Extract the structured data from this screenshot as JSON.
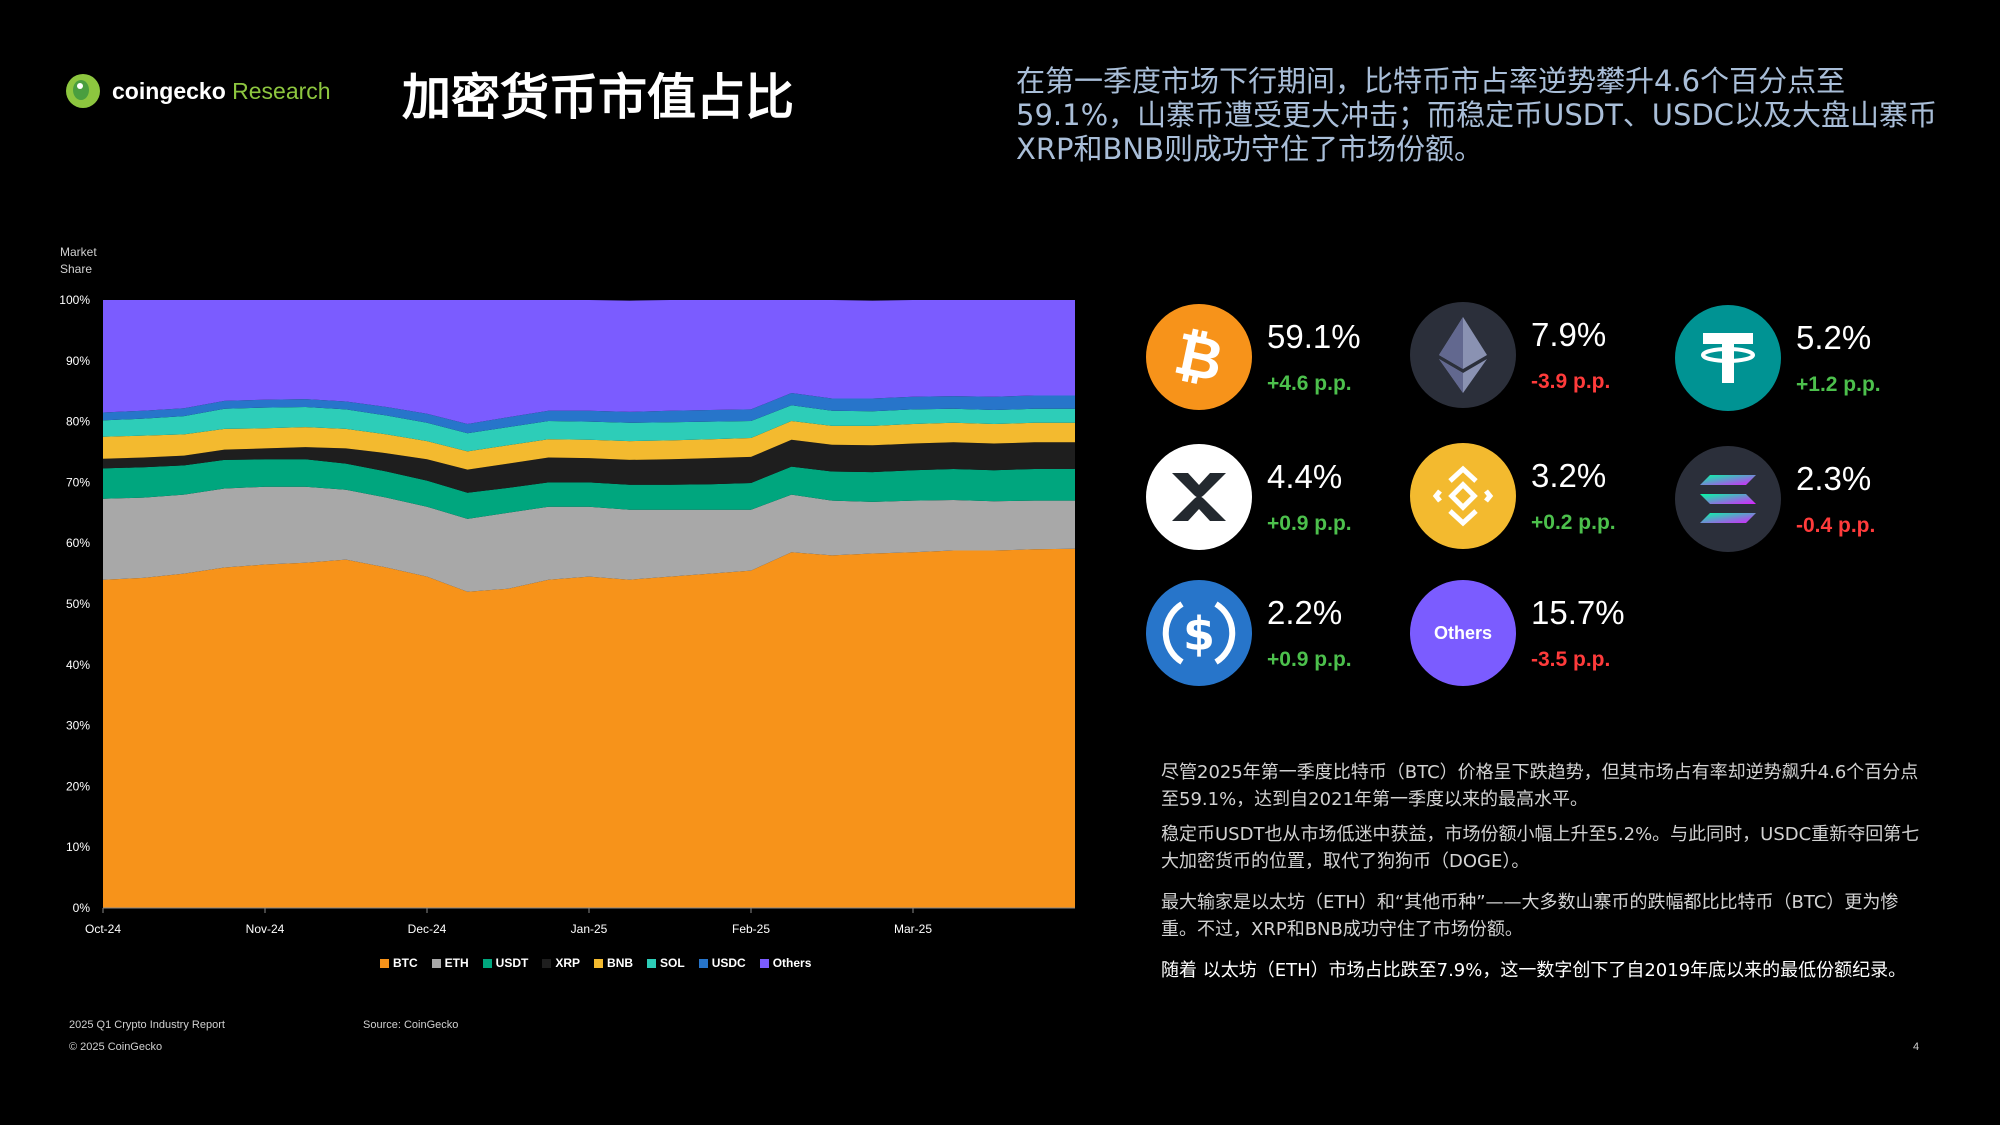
{
  "brand": {
    "name_main": "coingecko",
    "name_accent": " Research"
  },
  "title": "加密货币市值占比",
  "headline": "在第一季度市场下行期间，比特币市占率逆势攀升4.6个百分点至59.1%，山寨币遭受更大冲击；而稳定币USDT、USDC以及大盘山寨币XRP和BNB则成功守住了市场份额。",
  "chart_data": {
    "type": "area",
    "stacked": true,
    "ylabel": "Market\nShare",
    "ylabel_lines": [
      "Market",
      "Share"
    ],
    "ylim": [
      0,
      100
    ],
    "y_ticks": [
      "0%",
      "10%",
      "20%",
      "30%",
      "40%",
      "50%",
      "60%",
      "70%",
      "80%",
      "90%",
      "100%"
    ],
    "x_ticks": [
      "Oct-24",
      "Nov-24",
      "Dec-24",
      "Jan-25",
      "Feb-25",
      "Mar-25"
    ],
    "x_tick_months": [
      0,
      1,
      2,
      3,
      4,
      5
    ],
    "x_range_months": [
      0,
      6.0
    ],
    "x_sample_months": [
      0,
      0.25,
      0.5,
      0.75,
      1.0,
      1.25,
      1.5,
      1.75,
      2.0,
      2.25,
      2.5,
      2.75,
      3.0,
      3.25,
      3.5,
      3.75,
      4.0,
      4.25,
      4.5,
      4.75,
      5.0,
      5.25,
      5.5,
      5.75,
      6.0
    ],
    "series": [
      {
        "name": "BTC",
        "color": "#f7931a",
        "values": [
          54.0,
          54.3,
          55.0,
          56.0,
          56.5,
          56.8,
          57.3,
          56.0,
          54.5,
          52.0,
          52.5,
          54.0,
          54.5,
          54.0,
          54.5,
          55.0,
          55.5,
          58.5,
          58.0,
          58.3,
          58.5,
          58.8,
          58.8,
          59.0,
          59.1
        ]
      },
      {
        "name": "ETH",
        "color": "#a8a8a8",
        "values": [
          13.3,
          13.2,
          13.0,
          13.0,
          12.8,
          12.5,
          11.5,
          11.5,
          11.5,
          12.0,
          12.5,
          12.0,
          11.5,
          11.5,
          11.0,
          10.5,
          10.0,
          9.5,
          9.0,
          8.5,
          8.5,
          8.3,
          8.1,
          8.0,
          7.9
        ]
      },
      {
        "name": "USDT",
        "color": "#00a67e",
        "values": [
          5.0,
          5.0,
          4.8,
          4.7,
          4.5,
          4.5,
          4.3,
          4.3,
          4.3,
          4.3,
          4.1,
          4.0,
          4.0,
          4.1,
          4.1,
          4.2,
          4.4,
          4.6,
          4.8,
          4.9,
          5.0,
          5.1,
          5.1,
          5.2,
          5.2
        ]
      },
      {
        "name": "XRP",
        "color": "#1e1e1e",
        "values": [
          1.6,
          1.6,
          1.6,
          1.7,
          1.8,
          2.0,
          2.5,
          3.0,
          3.5,
          3.8,
          4.0,
          4.1,
          4.0,
          4.1,
          4.2,
          4.3,
          4.3,
          4.4,
          4.4,
          4.4,
          4.4,
          4.4,
          4.4,
          4.4,
          4.4
        ]
      },
      {
        "name": "BNB",
        "color": "#f3ba2f",
        "values": [
          3.6,
          3.6,
          3.5,
          3.4,
          3.3,
          3.3,
          3.2,
          3.1,
          3.0,
          3.0,
          3.0,
          3.0,
          3.0,
          3.1,
          3.1,
          3.1,
          3.1,
          3.1,
          3.1,
          3.2,
          3.2,
          3.2,
          3.2,
          3.2,
          3.2
        ]
      },
      {
        "name": "SOL",
        "color": "#2dcdb8",
        "values": [
          2.7,
          2.8,
          3.0,
          3.3,
          3.4,
          3.3,
          3.2,
          3.1,
          3.0,
          3.0,
          3.0,
          3.0,
          3.0,
          3.0,
          3.0,
          2.9,
          2.8,
          2.6,
          2.5,
          2.4,
          2.4,
          2.3,
          2.3,
          2.3,
          2.3
        ]
      },
      {
        "name": "USDC",
        "color": "#2775ca",
        "values": [
          1.3,
          1.3,
          1.3,
          1.3,
          1.3,
          1.3,
          1.3,
          1.4,
          1.5,
          1.5,
          1.6,
          1.7,
          1.8,
          1.8,
          1.9,
          1.9,
          1.9,
          2.0,
          2.0,
          2.1,
          2.1,
          2.1,
          2.2,
          2.2,
          2.2
        ]
      },
      {
        "name": "Others",
        "color": "#7b5cff",
        "values": [
          18.5,
          18.2,
          17.8,
          16.6,
          16.4,
          16.3,
          17.0,
          19.6,
          20.7,
          20.4,
          19.3,
          18.2,
          18.2,
          18.3,
          18.2,
          18.1,
          18.0,
          15.3,
          16.2,
          16.1,
          15.9,
          15.8,
          15.9,
          15.7,
          15.7
        ]
      }
    ]
  },
  "coins": [
    {
      "name": "BTC",
      "value": "59.1%",
      "delta": "+4.6 p.p.",
      "dir": "pos",
      "icon": "bitcoin-icon",
      "bg": "#f7931a"
    },
    {
      "name": "ETH",
      "value": "7.9%",
      "delta": "-3.9 p.p.",
      "dir": "neg",
      "icon": "ethereum-icon",
      "bg": "#2b2f3a"
    },
    {
      "name": "USDT",
      "value": "5.2%",
      "delta": "+1.2 p.p.",
      "dir": "pos",
      "icon": "tether-icon",
      "bg": "#009393"
    },
    {
      "name": "XRP",
      "value": "4.4%",
      "delta": "+0.9 p.p.",
      "dir": "pos",
      "icon": "xrp-icon",
      "bg": "#ffffff"
    },
    {
      "name": "BNB",
      "value": "3.2%",
      "delta": "+0.2 p.p.",
      "dir": "pos",
      "icon": "bnb-icon",
      "bg": "#f3ba2f"
    },
    {
      "name": "SOL",
      "value": "2.3%",
      "delta": "-0.4 p.p.",
      "dir": "neg",
      "icon": "solana-icon",
      "bg": "#2b2f3a"
    },
    {
      "name": "USDC",
      "value": "2.2%",
      "delta": "+0.9 p.p.",
      "dir": "pos",
      "icon": "usdc-icon",
      "bg": "#2775ca"
    },
    {
      "name": "Others",
      "value": "15.7%",
      "delta": "-3.5 p.p.",
      "dir": "neg",
      "icon": "others-icon",
      "bg": "#7b5cff",
      "label": "Others"
    }
  ],
  "paragraphs": [
    "尽管2025年第一季度比特币（BTC）价格呈下跌趋势，但其市场占有率却逆势飙升4.6个百分点至59.1%，达到自2021年第一季度以来的最高水平。",
    "稳定币USDT也从市场低迷中获益，市场份额小幅上升至5.2%。与此同时，USDC重新夺回第七大加密货币的位置，取代了狗狗币（DOGE）。",
    "最大输家是以太坊（ETH）和“其他币种”——大多数山寨币的跌幅都比比特币（BTC）更为惨重。不过，XRP和BNB成功守住了市场份额。",
    "随着 以太坊（ETH）市场占比跌至7.9%，这一数字创下了自2019年底以来的最低份额纪录。"
  ],
  "footer": {
    "report": "2025 Q1 Crypto Industry Report",
    "source": "Source: CoinGecko",
    "copyright": "© 2025 CoinGecko",
    "page": "4"
  }
}
